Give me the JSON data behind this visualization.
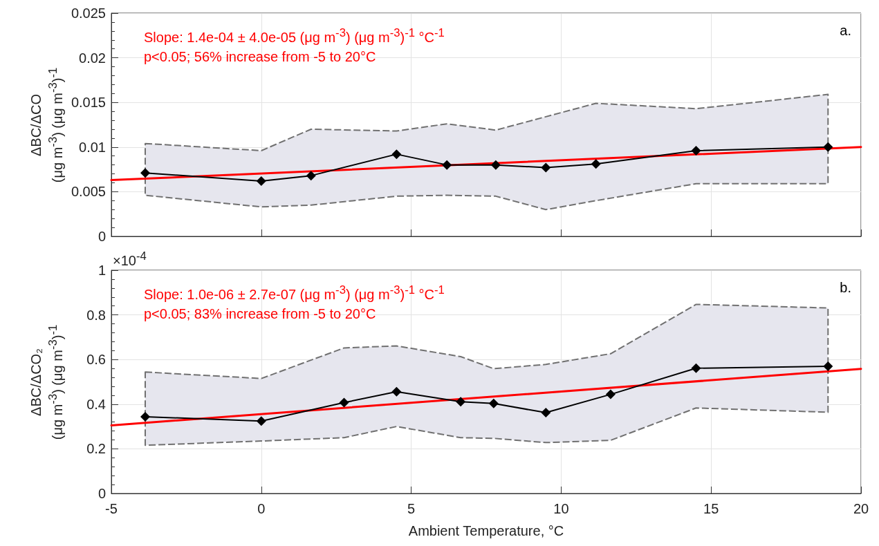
{
  "chart_data": [
    {
      "type": "line",
      "ylabel": "ΔBC/ΔCO\n(μg m$^{-3}$) (μg m$^{-3}$)$^{-1}$",
      "xlim": [
        -5,
        20
      ],
      "xticks": [
        -5,
        0,
        5,
        10,
        15,
        20
      ],
      "ylim": [
        0,
        0.025
      ],
      "yticks": [
        0,
        0.005,
        0.01,
        0.015,
        0.02,
        0.025
      ],
      "grid": true,
      "tick_labels": "y",
      "marker": "diamond",
      "line_style": "solid",
      "annotations": [
        "Slope: 1.4e-04 ± 4.0e-05 (μg m$^{-3}$) (μg m$^{-3}$)$^{-1}$ °C$^{-1}$",
        "p<0.05; 56% increase from -5 to 20°C",
        "a."
      ],
      "series": [
        {
          "color": "#000000",
          "x": [
            -3.87,
            0,
            1.66,
            4.51,
            6.19,
            7.82,
            9.49,
            11.16,
            14.5,
            18.9
          ],
          "values": [
            0.0071,
            0.0062,
            0.0068,
            0.0092,
            0.008,
            0.008,
            0.0077,
            0.0081,
            0.0096,
            0.01
          ],
          "lower": [
            0.0046,
            0.0033,
            0.0035,
            0.0045,
            0.0046,
            0.0045,
            0.003,
            0.004,
            0.0059,
            0.0059
          ],
          "upper": [
            0.0104,
            0.0096,
            0.012,
            0.0118,
            0.0126,
            0.0119,
            0.0134,
            0.0149,
            0.0143,
            0.0159
          ]
        },
        {
          "type": "line",
          "color": "#ff0000",
          "marker": "none",
          "x": [
            -5,
            20
          ],
          "values": [
            0.0063,
            0.01
          ]
        }
      ]
    },
    {
      "type": "line",
      "ylabel": "ΔBC/ΔCO₂\n(μg m$^{-3}$) (μg m$^{-3}$)$^{-1}$",
      "xlabel": "Ambient Temperature, °C",
      "xlim": [
        -5,
        20
      ],
      "xticks": [
        -5,
        0,
        5,
        10,
        15,
        20
      ],
      "ylim": [
        0,
        1
      ],
      "yticks": [
        0,
        0.2,
        0.4,
        0.6,
        0.8,
        1
      ],
      "grid": true,
      "marker": "diamond",
      "line_style": "solid",
      "annotations": [
        "Slope: 1.0e-06 ± 2.7e-07 (μg m$^{-3}$) (μg m$^{-3}$)$^{-1}$ °C$^{-1}$",
        "p<0.05; 83% increase from -5 to 20°C",
        "b.",
        "×10$^{-4}$"
      ],
      "series": [
        {
          "color": "#000000",
          "x": [
            -3.87,
            0,
            2.76,
            4.51,
            6.65,
            7.75,
            9.49,
            11.65,
            14.5,
            18.9
          ],
          "values": [
            0.344,
            0.324,
            0.407,
            0.456,
            0.411,
            0.403,
            0.362,
            0.444,
            0.561,
            0.57
          ],
          "lower": [
            0.216,
            0.235,
            0.25,
            0.3,
            0.25,
            0.247,
            0.228,
            0.238,
            0.383,
            0.364
          ],
          "upper": [
            0.544,
            0.515,
            0.652,
            0.661,
            0.613,
            0.559,
            0.578,
            0.626,
            0.847,
            0.831
          ]
        },
        {
          "type": "line",
          "color": "#ff0000",
          "marker": "none",
          "x": [
            -5,
            20
          ],
          "values": [
            0.305,
            0.558
          ]
        }
      ]
    }
  ]
}
